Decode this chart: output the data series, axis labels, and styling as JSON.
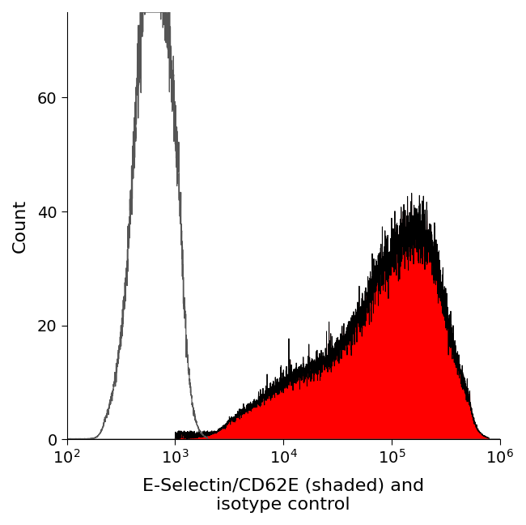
{
  "title": "",
  "xlabel": "E-Selectin/CD62E (shaded) and\nisotype control",
  "ylabel": "Count",
  "xlim_log": [
    2,
    6
  ],
  "ylim": [
    0,
    75
  ],
  "yticks": [
    0,
    20,
    40,
    60
  ],
  "xtick_values": [
    100,
    1000,
    10000,
    100000,
    1000000
  ],
  "isotype_color": "#555555",
  "antibody_fill_color": "#ff0000",
  "antibody_line_color": "#000000",
  "background_color": "#ffffff",
  "fig_width": 6.5,
  "fig_height": 6.48,
  "dpi": 100,
  "xlabel_fontsize": 16,
  "ylabel_fontsize": 16,
  "tick_fontsize": 14
}
